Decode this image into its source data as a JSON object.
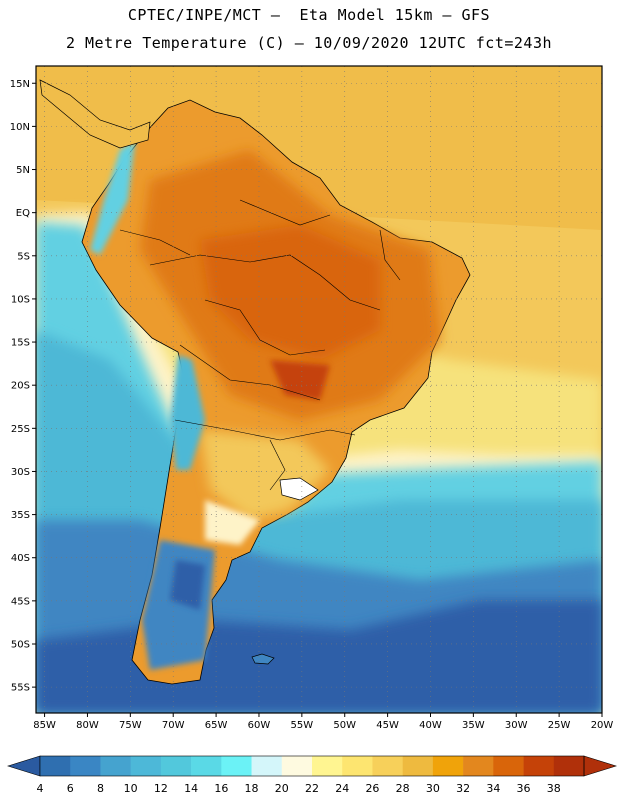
{
  "header": {
    "line1": "CPTEC/INPE/MCT –  Eta Model 15km – GFS",
    "line2": "2 Metre Temperature (C) – 10/09/2020 12UTC fct=243h"
  },
  "map": {
    "lat_range": [
      -58,
      17
    ],
    "lon_range": [
      -86,
      -20
    ],
    "lat_ticks": [
      {
        "value": 15,
        "label": "15N"
      },
      {
        "value": 10,
        "label": "10N"
      },
      {
        "value": 5,
        "label": "5N"
      },
      {
        "value": 0,
        "label": "EQ"
      },
      {
        "value": -5,
        "label": "5S"
      },
      {
        "value": -10,
        "label": "10S"
      },
      {
        "value": -15,
        "label": "15S"
      },
      {
        "value": -20,
        "label": "20S"
      },
      {
        "value": -25,
        "label": "25S"
      },
      {
        "value": -30,
        "label": "30S"
      },
      {
        "value": -35,
        "label": "35S"
      },
      {
        "value": -40,
        "label": "40S"
      },
      {
        "value": -45,
        "label": "45S"
      },
      {
        "value": -50,
        "label": "50S"
      },
      {
        "value": -55,
        "label": "55S"
      }
    ],
    "lon_ticks": [
      {
        "value": -85,
        "label": "85W"
      },
      {
        "value": -80,
        "label": "80W"
      },
      {
        "value": -75,
        "label": "75W"
      },
      {
        "value": -70,
        "label": "70W"
      },
      {
        "value": -65,
        "label": "65W"
      },
      {
        "value": -60,
        "label": "60W"
      },
      {
        "value": -55,
        "label": "55W"
      },
      {
        "value": -50,
        "label": "50W"
      },
      {
        "value": -45,
        "label": "45W"
      },
      {
        "value": -40,
        "label": "40W"
      },
      {
        "value": -35,
        "label": "35W"
      },
      {
        "value": -30,
        "label": "30W"
      },
      {
        "value": -25,
        "label": "25W"
      },
      {
        "value": -20,
        "label": "20W"
      }
    ]
  },
  "colorbar": {
    "labels": [
      "4",
      "6",
      "8",
      "10",
      "12",
      "14",
      "16",
      "18",
      "20",
      "22",
      "24",
      "26",
      "28",
      "30",
      "32",
      "34",
      "36",
      "38"
    ],
    "colors": [
      "#2f6fb0",
      "#3a86c4",
      "#45a3cf",
      "#4db8d8",
      "#52c8dc",
      "#5ad9e6",
      "#6bf2f6",
      "#d4f6fa",
      "#fefae0",
      "#fff591",
      "#fde570",
      "#f7d05a",
      "#eeba3f",
      "#f0a30a",
      "#e3871e",
      "#d9650a",
      "#c54208",
      "#b0300a"
    ],
    "under_color": "#2a5aa0",
    "over_color": "#b0300a"
  },
  "colors": {
    "ocean_cold": "#2e5fa8",
    "ocean_cool": "#3f86c2",
    "ocean_mid": "#4eb8d6",
    "ocean_light": "#62d0e2",
    "ocean_warm": "#f6e27c",
    "ocean_hot": "#f3c85a",
    "land_hot": "#d9650a",
    "land_warm": "#ec9b2d"
  }
}
